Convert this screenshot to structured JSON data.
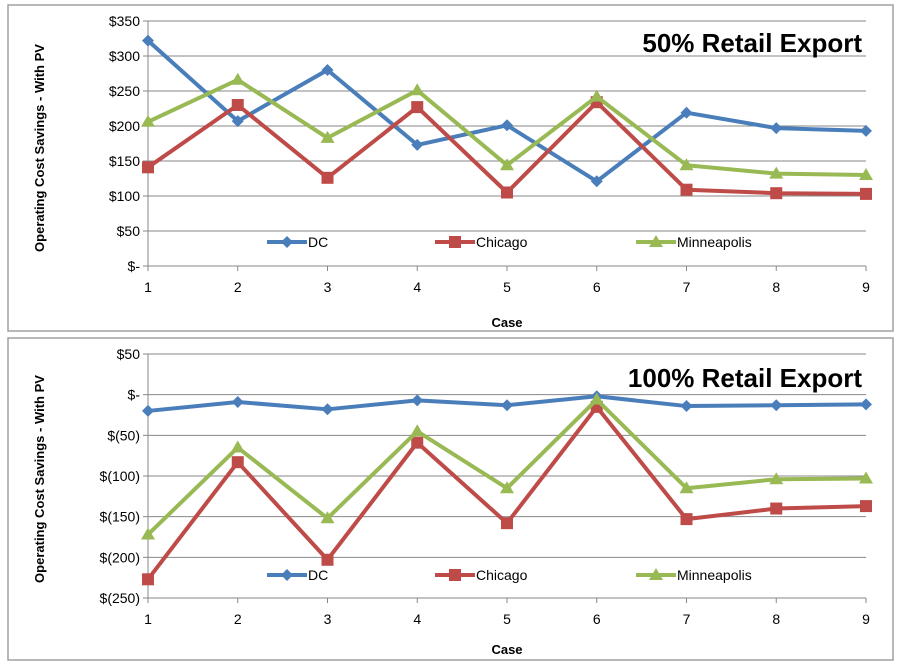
{
  "colors": {
    "DC": "#4a7ebb",
    "Chicago": "#be4b48",
    "Minneapolis": "#98b954",
    "grid": "#878787",
    "frame": "#a0a0a0"
  },
  "chart_data": [
    {
      "type": "line",
      "title": "50% Retail Export",
      "xlabel": "Case",
      "ylabel": "Operating Cost Savings - With PV",
      "x": [
        1,
        2,
        3,
        4,
        5,
        6,
        7,
        8,
        9
      ],
      "ylim": [
        0,
        350
      ],
      "yticks": [
        0,
        50,
        100,
        150,
        200,
        250,
        300,
        350
      ],
      "ytick_labels": [
        "$-",
        "$50",
        "$100",
        "$150",
        "$200",
        "$250",
        "$300",
        "$350"
      ],
      "grid": true,
      "legend_placement": "bottom-inside",
      "series": [
        {
          "name": "DC",
          "marker": "diamond",
          "values": [
            322,
            207,
            280,
            173,
            201,
            121,
            219,
            197,
            193
          ]
        },
        {
          "name": "Chicago",
          "marker": "square",
          "values": [
            141,
            230,
            126,
            227,
            105,
            234,
            109,
            104,
            103
          ]
        },
        {
          "name": "Minneapolis",
          "marker": "triangle",
          "values": [
            206,
            266,
            183,
            251,
            144,
            242,
            144,
            132,
            130
          ]
        }
      ]
    },
    {
      "type": "line",
      "title": "100% Retail Export",
      "xlabel": "Case",
      "ylabel": "Operating Cost Savings - With PV",
      "x": [
        1,
        2,
        3,
        4,
        5,
        6,
        7,
        8,
        9
      ],
      "ylim": [
        -250,
        50
      ],
      "yticks": [
        -250,
        -200,
        -150,
        -100,
        -50,
        0,
        50
      ],
      "ytick_labels": [
        "$(250)",
        "$(200)",
        "$(150)",
        "$(100)",
        "$(50)",
        "$-",
        "$50"
      ],
      "grid": true,
      "legend_placement": "bottom-inside",
      "series": [
        {
          "name": "DC",
          "marker": "diamond",
          "values": [
            -20,
            -9,
            -18,
            -7,
            -13,
            -2,
            -14,
            -13,
            -12
          ]
        },
        {
          "name": "Chicago",
          "marker": "square",
          "values": [
            -227,
            -83,
            -203,
            -59,
            -158,
            -15,
            -153,
            -140,
            -137
          ]
        },
        {
          "name": "Minneapolis",
          "marker": "triangle",
          "values": [
            -172,
            -65,
            -152,
            -45,
            -115,
            -6,
            -115,
            -104,
            -103
          ]
        }
      ]
    }
  ]
}
